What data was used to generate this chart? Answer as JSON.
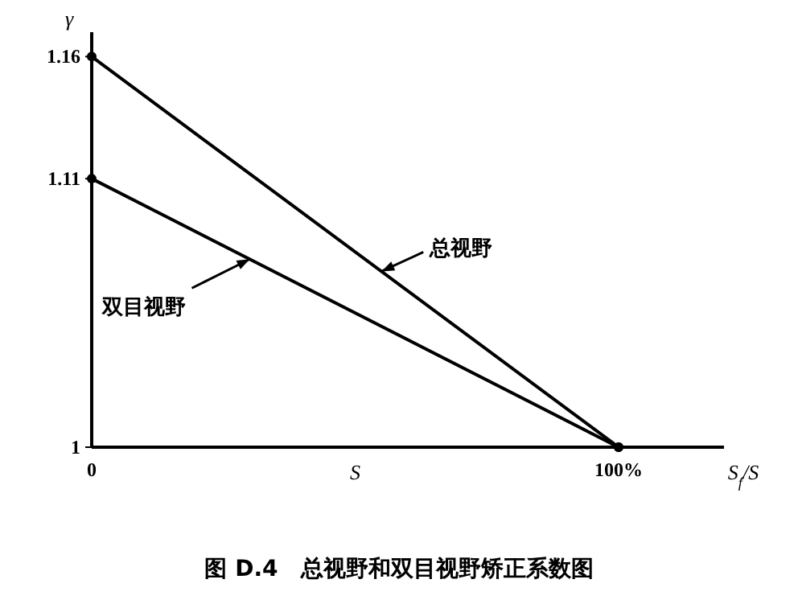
{
  "chart_data": {
    "type": "line",
    "title": "图 D.4　总视野和双目视野矫正系数图",
    "xlabel": "S$_{f}$/S",
    "ylabel": "γ",
    "x": [
      0,
      100
    ],
    "series": [
      {
        "name": "总视野",
        "color": "#000000",
        "values": [
          1.16,
          1
        ]
      },
      {
        "name": "双目视野",
        "color": "#000000",
        "values": [
          1.11,
          1
        ]
      }
    ],
    "xlim": [
      0,
      120
    ],
    "ylim": [
      1,
      1.17
    ],
    "xticks": [
      0,
      {
        "value": 100,
        "label": "100%"
      }
    ],
    "yticks": [
      1,
      1.11,
      1.16
    ],
    "annotations": [
      "S"
    ],
    "marker": "circle",
    "line_style": "solid",
    "grid": false
  }
}
